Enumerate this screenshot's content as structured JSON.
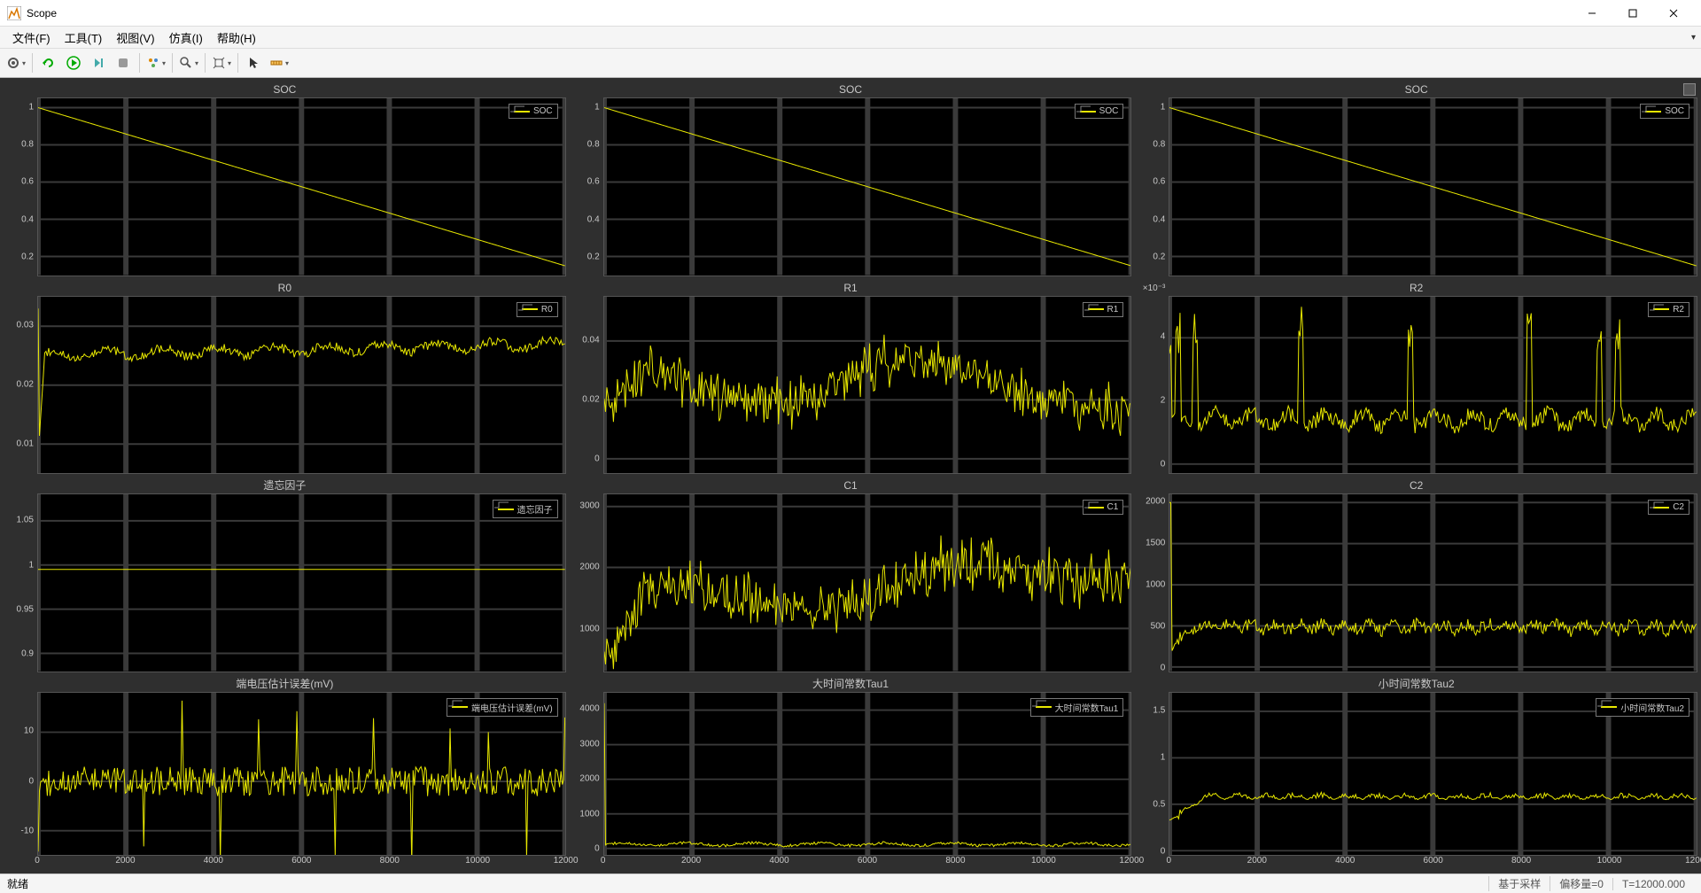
{
  "window": {
    "title": "Scope"
  },
  "menus": {
    "file": "文件(F)",
    "tools": "工具(T)",
    "view": "视图(V)",
    "sim": "仿真(I)",
    "help": "帮助(H)"
  },
  "status": {
    "ready": "就绪",
    "sampling": "基于采样",
    "offset_label": "偏移量=0",
    "time": "T=12000.000"
  },
  "xaxis": {
    "min": 0,
    "max": 12000,
    "ticks": [
      0,
      2000,
      4000,
      6000,
      8000,
      10000,
      12000
    ]
  },
  "colors": {
    "trace": "#e8e800",
    "plot_bg": "#000000",
    "scope_bg": "#2f2f2f",
    "grid": "#3a3a3a",
    "axis_text": "#c8c8c8",
    "legend_border": "#777777"
  },
  "panels": [
    {
      "id": "soc1",
      "title": "SOC",
      "legend": "SOC",
      "type": "line",
      "ylim": [
        0.1,
        1.05
      ],
      "yticks": [
        0.2,
        0.4,
        0.6,
        0.8,
        1
      ],
      "data": {
        "kind": "linear",
        "y0": 1.0,
        "y1": 0.15
      }
    },
    {
      "id": "soc2",
      "title": "SOC",
      "legend": "SOC",
      "type": "line",
      "ylim": [
        0.1,
        1.05
      ],
      "yticks": [
        0.2,
        0.4,
        0.6,
        0.8,
        1
      ],
      "data": {
        "kind": "linear",
        "y0": 1.0,
        "y1": 0.15
      }
    },
    {
      "id": "soc3",
      "title": "SOC",
      "legend": "SOC",
      "type": "line",
      "ylim": [
        0.1,
        1.05
      ],
      "yticks": [
        0.2,
        0.4,
        0.6,
        0.8,
        1
      ],
      "data": {
        "kind": "linear",
        "y0": 1.0,
        "y1": 0.15
      }
    },
    {
      "id": "r0",
      "title": "R0",
      "legend": "R0",
      "type": "line",
      "ylim": [
        0.005,
        0.035
      ],
      "yticks": [
        0.01,
        0.02,
        0.03
      ],
      "data": {
        "kind": "noisy",
        "base0": 0.025,
        "base1": 0.027,
        "amp": 0.0015,
        "freq": 60,
        "spike_x": 0,
        "spike_y": 0.033,
        "drop_y": 0.008
      }
    },
    {
      "id": "r1",
      "title": "R1",
      "legend": "R1",
      "type": "line",
      "ylim": [
        -0.005,
        0.055
      ],
      "yticks": [
        0,
        0.02,
        0.04
      ],
      "data": {
        "kind": "dense",
        "base": [
          0.02,
          0.03,
          0.025,
          0.02,
          0.018,
          0.022,
          0.032,
          0.035,
          0.03,
          0.025,
          0.02,
          0.018,
          0.015
        ],
        "amp": 0.012,
        "freq": 120
      }
    },
    {
      "id": "r2",
      "title": "R2",
      "legend": "R2",
      "type": "line",
      "multiplier": "×10⁻³",
      "ylim": [
        -0.3,
        5.3
      ],
      "yticks": [
        0,
        2,
        4
      ],
      "data": {
        "kind": "spikes",
        "base": 1.4,
        "amp": 0.5,
        "freq": 90,
        "spikes": [
          0,
          200,
          600,
          3000,
          5500,
          8200,
          9800,
          10200
        ],
        "spike_h": 5
      }
    },
    {
      "id": "ff",
      "title": "遗忘因子",
      "legend": "遗忘因子",
      "type": "line",
      "ylim": [
        0.88,
        1.08
      ],
      "yticks": [
        0.9,
        0.95,
        1,
        1.05
      ],
      "data": {
        "kind": "const",
        "y": 0.995
      }
    },
    {
      "id": "c1",
      "title": "C1",
      "legend": "C1",
      "type": "line",
      "ylim": [
        300,
        3200
      ],
      "yticks": [
        1000,
        2000,
        3000
      ],
      "data": {
        "kind": "dense",
        "base": [
          600,
          1600,
          1700,
          1500,
          1400,
          1300,
          1400,
          1900,
          2100,
          2000,
          1900,
          1800,
          1800
        ],
        "amp": 600,
        "freq": 110
      }
    },
    {
      "id": "c2",
      "title": "C2",
      "legend": "C2",
      "type": "line",
      "ylim": [
        -50,
        2100
      ],
      "yticks": [
        0,
        500,
        1000,
        1500,
        2000
      ],
      "data": {
        "kind": "spikes_base",
        "base": 400,
        "amp": 150,
        "freq": 70,
        "spikes": [
          0
        ],
        "spike_h": 2000,
        "rise": true
      }
    },
    {
      "id": "verr",
      "title": "端电压估计误差(mV)",
      "legend": "端电压估计误差(mV)",
      "type": "line",
      "ylim": [
        -15,
        18
      ],
      "yticks": [
        -10,
        0,
        10
      ],
      "data": {
        "kind": "comb",
        "base": 0,
        "amp": 3,
        "freq": 250,
        "spike_amp": 14,
        "spike_freq": 55
      }
    },
    {
      "id": "tau1",
      "title": "大时间常数Tau1",
      "legend": "大时间常数Tau1",
      "type": "line",
      "ylim": [
        -200,
        4500
      ],
      "yticks": [
        0,
        1000,
        2000,
        3000,
        4000
      ],
      "data": {
        "kind": "low",
        "base": 120,
        "amp": 80,
        "freq": 50,
        "startspike": 4200
      }
    },
    {
      "id": "tau2",
      "title": "小时间常数Tau2",
      "legend": "小时间常数Tau2",
      "type": "line",
      "ylim": [
        -0.05,
        1.7
      ],
      "yticks": [
        0,
        0.5,
        1,
        1.5
      ],
      "data": {
        "kind": "rise_flat",
        "y0": 0.3,
        "y1": 0.55,
        "rise_x": 800,
        "amp": 0.08,
        "freq": 60
      }
    }
  ]
}
